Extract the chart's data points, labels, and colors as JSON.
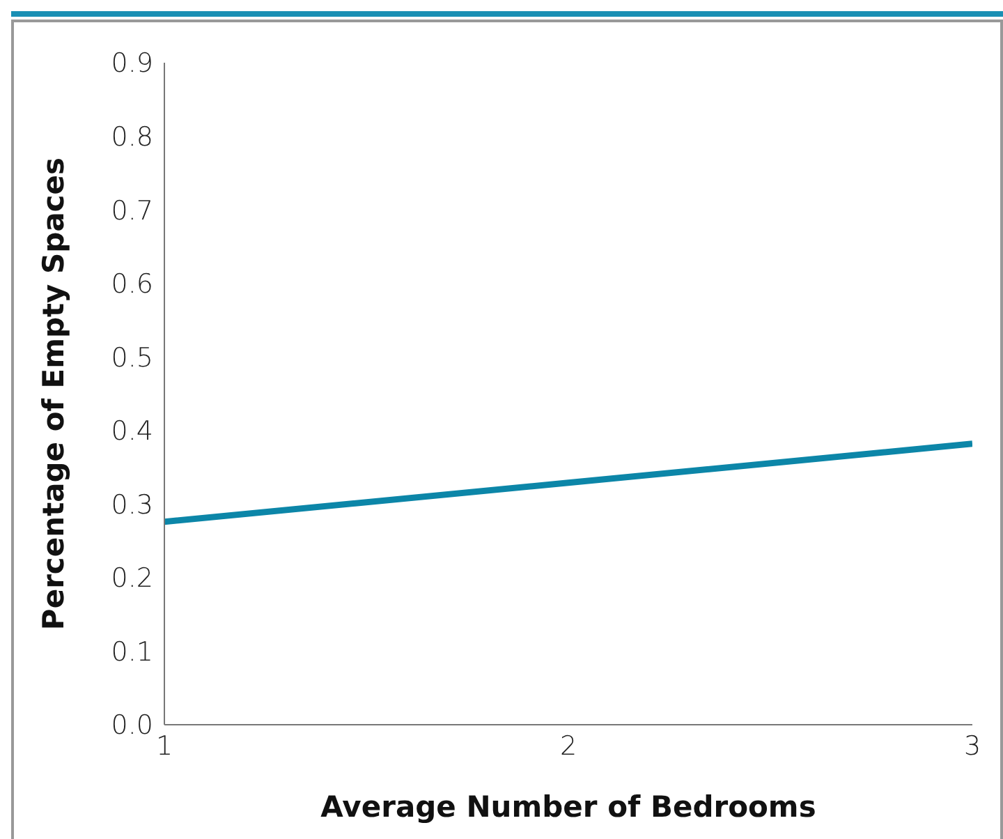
{
  "chart_data": {
    "type": "line",
    "xlabel": "Average Number of Bedrooms",
    "ylabel": "Percentage of Empty Spaces",
    "x": [
      1,
      2,
      3
    ],
    "series": [
      {
        "color": "#0c86a8",
        "values": [
          0.276,
          0.329,
          0.382
        ]
      }
    ],
    "xlim": [
      1,
      3
    ],
    "xticks": [
      1,
      2,
      3
    ],
    "ylim": [
      0,
      0.9
    ],
    "yticks": [
      {
        "value": 0,
        "label": "0.0"
      },
      0.1,
      0.2,
      0.3,
      0.4,
      0.5,
      0.6,
      0.7,
      0.8,
      0.9
    ],
    "grid": false,
    "legend": false,
    "marker": "none",
    "line_style": "solid"
  }
}
